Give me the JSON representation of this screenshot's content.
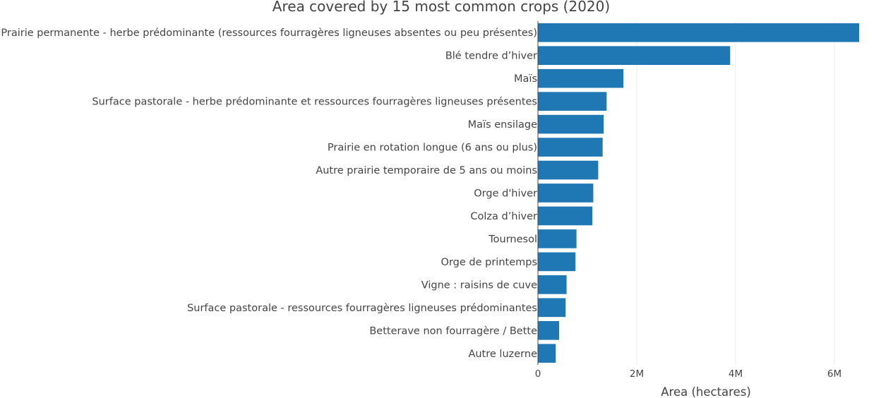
{
  "chart_data": {
    "type": "bar",
    "orientation": "horizontal",
    "title": "Area covered by 15 most common crops (2020)",
    "xlabel": "Area (hectares)",
    "ylabel": "",
    "xlim": [
      0,
      6600000
    ],
    "xticks": [
      {
        "value": 0,
        "label": "0"
      },
      {
        "value": 2000000,
        "label": "2M"
      },
      {
        "value": 4000000,
        "label": "4M"
      },
      {
        "value": 6000000,
        "label": "6M"
      }
    ],
    "grid": true,
    "bar_color": "#1f77b4",
    "categories": [
      "Prairie permanente - herbe prédominante (ressources fourragères ligneuses absentes ou peu présentes)",
      "Blé tendre d’hiver",
      "Maïs",
      "Surface pastorale - herbe prédominante et ressources fourragères ligneuses présentes",
      "Maïs ensilage",
      "Prairie en rotation longue (6 ans ou plus)",
      "Autre prairie temporaire de 5 ans ou moins",
      "Orge d'hiver",
      "Colza d’hiver",
      "Tournesol",
      "Orge de printemps",
      "Vigne : raisins de cuve",
      "Surface pastorale - ressources fourragères ligneuses prédominantes",
      "Betterave non fourragère / Bette",
      "Autre luzerne"
    ],
    "values": [
      6500000,
      3890000,
      1730000,
      1390000,
      1330000,
      1310000,
      1220000,
      1120000,
      1100000,
      780000,
      760000,
      580000,
      560000,
      430000,
      360000
    ]
  }
}
